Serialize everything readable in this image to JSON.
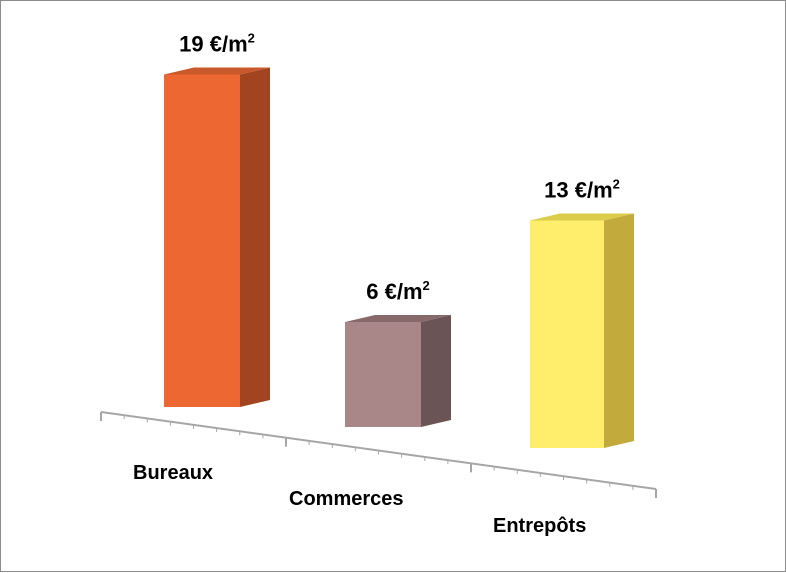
{
  "chart_data": {
    "type": "bar",
    "categories": [
      "Bureaux",
      "Commerces",
      "Entrepôts"
    ],
    "values": [
      19,
      6,
      13
    ],
    "data_labels": [
      {
        "number": "19",
        "unit": "€/m",
        "exponent": "2"
      },
      {
        "number": "6",
        "unit": "€/m",
        "exponent": "2"
      },
      {
        "number": "13",
        "unit": "€/m",
        "exponent": "2"
      }
    ],
    "colors": {
      "Bureaux": {
        "front": "#ec6731",
        "side": "#a24420",
        "top": "#c9582a"
      },
      "Commerces": {
        "front": "#a98788",
        "side": "#6b5455",
        "top": "#87696b"
      },
      "Entrepôts": {
        "front": "#ffee6b",
        "side": "#c2aa3c",
        "top": "#dccc4b"
      }
    },
    "axis_color": "#a6a6a6",
    "ylim": [
      0,
      20
    ],
    "grid": false,
    "legend": "none"
  }
}
